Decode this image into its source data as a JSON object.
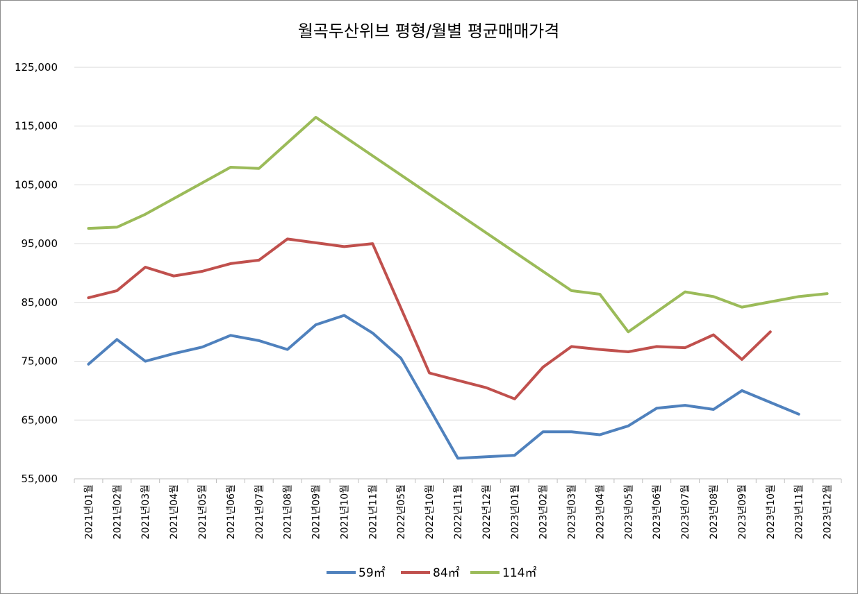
{
  "chart_data": {
    "type": "line",
    "title": "월곡두산위브 평형/월별 평균매매가격",
    "xlabel": "",
    "ylabel": "",
    "ylim": [
      55000,
      125000
    ],
    "yticks": [
      55000,
      65000,
      75000,
      85000,
      95000,
      105000,
      115000,
      125000
    ],
    "ytick_labels": [
      "55,000",
      "65,000",
      "75,000",
      "85,000",
      "95,000",
      "105,000",
      "115,000",
      "125,000"
    ],
    "grid": true,
    "legend_position": "bottom",
    "categories": [
      "2021년01월",
      "2021년02월",
      "2021년03월",
      "2021년04월",
      "2021년05월",
      "2021년06월",
      "2021년07월",
      "2021년08월",
      "2021년09월",
      "2021년10월",
      "2021년11월",
      "2022년05월",
      "2022년10월",
      "2022년11월",
      "2022년12월",
      "2023년01월",
      "2023년02월",
      "2023년03월",
      "2023년04월",
      "2023년05월",
      "2023년06월",
      "2023년07월",
      "2023년08월",
      "2023년09월",
      "2023년10월",
      "2023년11월",
      "2023년12월"
    ],
    "series": [
      {
        "name": "59㎡",
        "color": "#4f81bd",
        "values": [
          74500,
          78700,
          75000,
          76300,
          77400,
          79400,
          78500,
          77000,
          81200,
          82800,
          79800,
          75500,
          null,
          58500,
          null,
          59000,
          63000,
          63000,
          62500,
          64000,
          67000,
          67500,
          66800,
          70000,
          null,
          66000,
          null
        ]
      },
      {
        "name": "84㎡",
        "color": "#c0504d",
        "values": [
          85800,
          87000,
          91000,
          89500,
          90300,
          91600,
          92200,
          95800,
          null,
          94500,
          95000,
          null,
          73000,
          null,
          70500,
          68600,
          74000,
          77500,
          77000,
          76600,
          77500,
          77300,
          79500,
          75300,
          80000,
          null,
          null
        ]
      },
      {
        "name": "114㎡",
        "color": "#9bbb59",
        "values": [
          97600,
          97800,
          100000,
          null,
          null,
          108000,
          107800,
          null,
          116500,
          null,
          null,
          null,
          null,
          null,
          null,
          null,
          null,
          87000,
          86400,
          80000,
          null,
          86800,
          86000,
          84200,
          null,
          86000,
          86500
        ]
      }
    ]
  }
}
